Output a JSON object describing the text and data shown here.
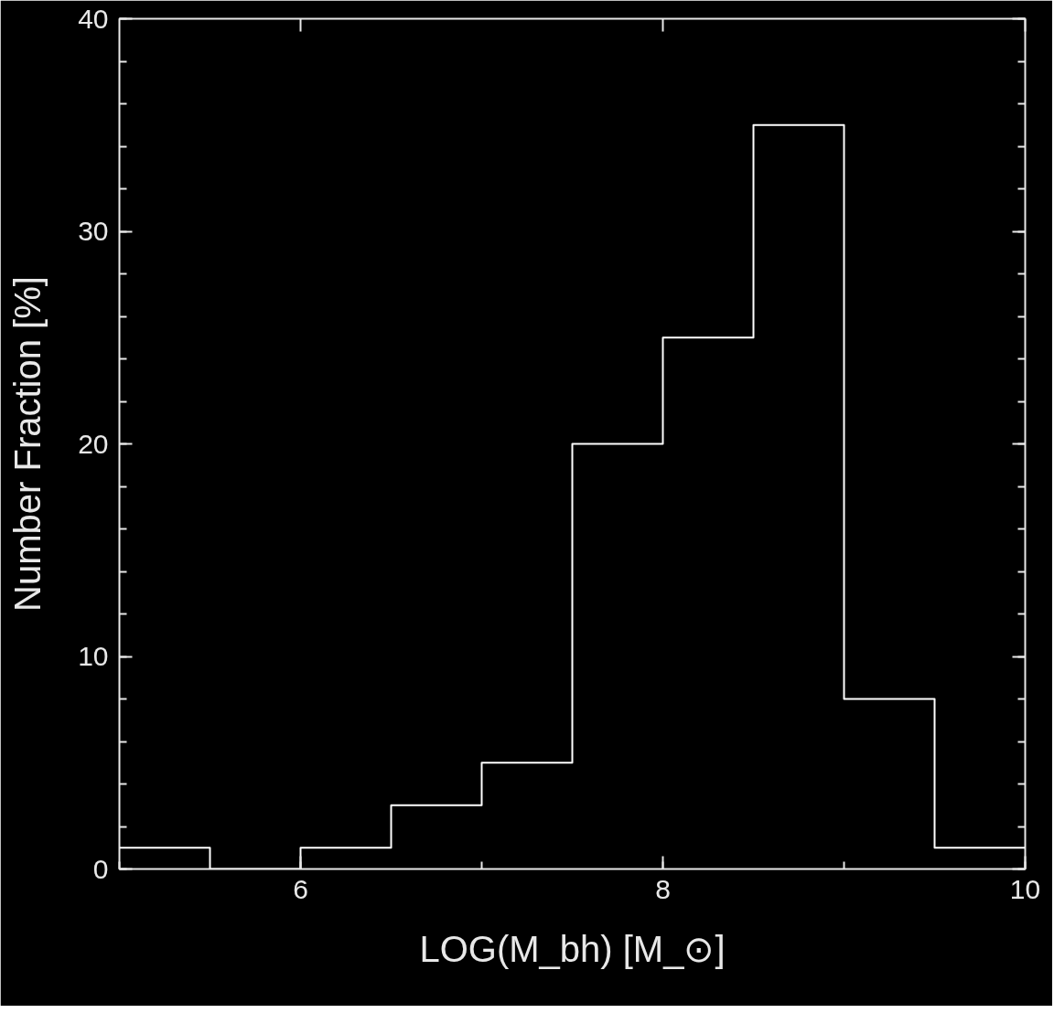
{
  "chart_data": {
    "type": "histogram",
    "xlabel": "LOG(M_bh) [M_⊙]",
    "ylabel": "Number Fraction [%]",
    "bins": [
      5,
      5.5,
      6,
      6.5,
      7,
      7.5,
      8,
      8.5,
      9,
      9.5,
      10
    ],
    "values": [
      1,
      0,
      1,
      3,
      5,
      20,
      25,
      35,
      8,
      1
    ],
    "color": "#ffffff",
    "xlim": [
      5,
      10
    ],
    "ylim": [
      0,
      40
    ],
    "xticks": [
      6,
      8,
      10
    ],
    "yticks": [
      0,
      10,
      20,
      30,
      40
    ],
    "grid": false
  }
}
